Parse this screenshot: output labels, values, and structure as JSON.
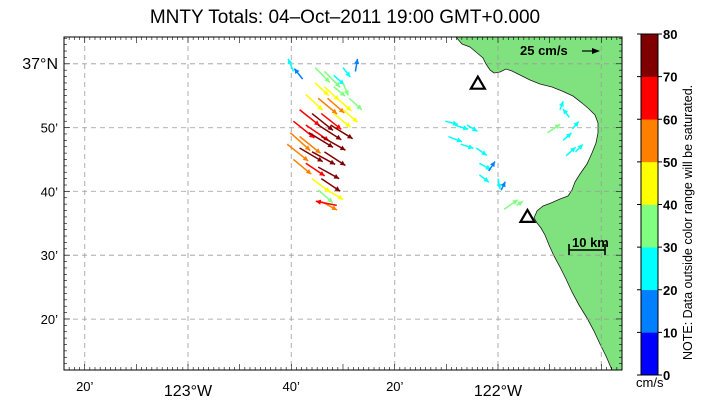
{
  "map": {
    "title": "MNTY Totals: 04–Oct–2011 19:00 GMT+0.000",
    "lon_range": [
      -123.4,
      -121.6
    ],
    "lat_range": [
      36.2,
      37.07
    ],
    "x_ticks": [
      {
        "lon": -123.333,
        "label": "20’"
      },
      {
        "lon": -123.0,
        "label": "123°W"
      },
      {
        "lon": -122.667,
        "label": "40’"
      },
      {
        "lon": -122.333,
        "label": "20’"
      },
      {
        "lon": -122.0,
        "label": "122°W"
      },
      {
        "lon": -121.667,
        "label": ""
      }
    ],
    "y_ticks": [
      {
        "lat": 37.0,
        "label": "37°N"
      },
      {
        "lat": 36.833,
        "label": "50’"
      },
      {
        "lat": 36.667,
        "label": "40’"
      },
      {
        "lat": 36.5,
        "label": "30’"
      },
      {
        "lat": 36.333,
        "label": "20’"
      }
    ],
    "scale_arrow_label": "25 cm/s",
    "scale_bar_label": "10 km",
    "land_color": "#7fe27f",
    "sites": [
      {
        "lon": -122.065,
        "lat": 36.948
      },
      {
        "lon": -121.905,
        "lat": 36.6
      }
    ]
  },
  "colorbar": {
    "ticks": [
      "0",
      "10",
      "20",
      "30",
      "40",
      "50",
      "60",
      "70",
      "80"
    ],
    "unit": "cm/s",
    "note": "NOTE: Data outside color range will be saturated.",
    "colors": [
      "#0000ff",
      "#0080ff",
      "#00ffff",
      "#80ff80",
      "#ffff00",
      "#ff8000",
      "#ff0000",
      "#800000"
    ]
  },
  "chart_data": {
    "type": "vector-field",
    "title": "MNTY Totals: 04–Oct–2011 19:00 GMT+0.000",
    "units": "cm/s",
    "color_range": [
      0,
      80
    ],
    "vectors": [
      {
        "lon": -122.66,
        "lat": 36.98,
        "u": -5,
        "v": 12,
        "speed": 20
      },
      {
        "lon": -122.63,
        "lat": 36.96,
        "u": -8,
        "v": 10,
        "speed": 18
      },
      {
        "lon": -122.59,
        "lat": 36.99,
        "u": 14,
        "v": -14,
        "speed": 34
      },
      {
        "lon": -122.56,
        "lat": 36.98,
        "u": 15,
        "v": -15,
        "speed": 35
      },
      {
        "lon": -122.53,
        "lat": 36.97,
        "u": 10,
        "v": -9,
        "speed": 25
      },
      {
        "lon": -122.5,
        "lat": 36.99,
        "u": 7,
        "v": -9,
        "speed": 22
      },
      {
        "lon": -122.46,
        "lat": 36.98,
        "u": 2,
        "v": 12,
        "speed": 14
      },
      {
        "lon": -122.59,
        "lat": 36.95,
        "u": 13,
        "v": -12,
        "speed": 45
      },
      {
        "lon": -122.56,
        "lat": 36.94,
        "u": 14,
        "v": -13,
        "speed": 40
      },
      {
        "lon": -122.53,
        "lat": 36.94,
        "u": 11,
        "v": -9,
        "speed": 37
      },
      {
        "lon": -122.5,
        "lat": 36.95,
        "u": 5,
        "v": -12,
        "speed": 32
      },
      {
        "lon": -122.62,
        "lat": 36.92,
        "u": 16,
        "v": -15,
        "speed": 45
      },
      {
        "lon": -122.58,
        "lat": 36.91,
        "u": 18,
        "v": -15,
        "speed": 55
      },
      {
        "lon": -122.55,
        "lat": 36.91,
        "u": 16,
        "v": -14,
        "speed": 50
      },
      {
        "lon": -122.52,
        "lat": 36.91,
        "u": 14,
        "v": -12,
        "speed": 43
      },
      {
        "lon": -122.48,
        "lat": 36.91,
        "u": 12,
        "v": -11,
        "speed": 36
      },
      {
        "lon": -122.64,
        "lat": 36.88,
        "u": 19,
        "v": -15,
        "speed": 68
      },
      {
        "lon": -122.6,
        "lat": 36.87,
        "u": 20,
        "v": -16,
        "speed": 72
      },
      {
        "lon": -122.57,
        "lat": 36.87,
        "u": 19,
        "v": -15,
        "speed": 62
      },
      {
        "lon": -122.53,
        "lat": 36.87,
        "u": 16,
        "v": -13,
        "speed": 48
      },
      {
        "lon": -122.5,
        "lat": 36.88,
        "u": 14,
        "v": -12,
        "speed": 42
      },
      {
        "lon": -122.66,
        "lat": 36.85,
        "u": 20,
        "v": -16,
        "speed": 62
      },
      {
        "lon": -122.62,
        "lat": 36.84,
        "u": 22,
        "v": -15,
        "speed": 66
      },
      {
        "lon": -122.58,
        "lat": 36.84,
        "u": 22,
        "v": -14,
        "speed": 76
      },
      {
        "lon": -122.54,
        "lat": 36.84,
        "u": 21,
        "v": -13,
        "speed": 78
      },
      {
        "lon": -122.67,
        "lat": 36.82,
        "u": 19,
        "v": -17,
        "speed": 55
      },
      {
        "lon": -122.64,
        "lat": 36.81,
        "u": 20,
        "v": -16,
        "speed": 58
      },
      {
        "lon": -122.61,
        "lat": 36.82,
        "u": 23,
        "v": -14,
        "speed": 78
      },
      {
        "lon": -122.57,
        "lat": 36.81,
        "u": 23,
        "v": -13,
        "speed": 80
      },
      {
        "lon": -122.68,
        "lat": 36.79,
        "u": 20,
        "v": -16,
        "speed": 56
      },
      {
        "lon": -122.64,
        "lat": 36.78,
        "u": 22,
        "v": -13,
        "speed": 78
      },
      {
        "lon": -122.6,
        "lat": 36.77,
        "u": 22,
        "v": -12,
        "speed": 80
      },
      {
        "lon": -122.56,
        "lat": 36.77,
        "u": 20,
        "v": -13,
        "speed": 70
      },
      {
        "lon": -122.66,
        "lat": 36.75,
        "u": 17,
        "v": -14,
        "speed": 55
      },
      {
        "lon": -122.62,
        "lat": 36.74,
        "u": 18,
        "v": -12,
        "speed": 62
      },
      {
        "lon": -122.58,
        "lat": 36.73,
        "u": 20,
        "v": -11,
        "speed": 75
      },
      {
        "lon": -122.6,
        "lat": 36.7,
        "u": 17,
        "v": -13,
        "speed": 48
      },
      {
        "lon": -122.57,
        "lat": 36.7,
        "u": 18,
        "v": -12,
        "speed": 70
      },
      {
        "lon": -122.58,
        "lat": 36.67,
        "u": 14,
        "v": -12,
        "speed": 38
      },
      {
        "lon": -122.55,
        "lat": 36.67,
        "u": 15,
        "v": -9,
        "speed": 45
      },
      {
        "lon": -122.57,
        "lat": 36.64,
        "u": 15,
        "v": -8,
        "speed": 50
      },
      {
        "lon": -122.52,
        "lat": 36.63,
        "u": -20,
        "v": 4,
        "speed": 68
      },
      {
        "lon": -122.17,
        "lat": 36.85,
        "u": 12,
        "v": -3,
        "speed": 25
      },
      {
        "lon": -122.14,
        "lat": 36.84,
        "u": 13,
        "v": -4,
        "speed": 26
      },
      {
        "lon": -122.1,
        "lat": 36.84,
        "u": 10,
        "v": -6,
        "speed": 27
      },
      {
        "lon": -122.16,
        "lat": 36.81,
        "u": 13,
        "v": -5,
        "speed": 25
      },
      {
        "lon": -122.12,
        "lat": 36.79,
        "u": 12,
        "v": -4,
        "speed": 27
      },
      {
        "lon": -122.07,
        "lat": 36.78,
        "u": 10,
        "v": -7,
        "speed": 26
      },
      {
        "lon": -122.06,
        "lat": 36.74,
        "u": 11,
        "v": -6,
        "speed": 25
      },
      {
        "lon": -122.06,
        "lat": 36.71,
        "u": 9,
        "v": -7,
        "speed": 26
      },
      {
        "lon": -122.03,
        "lat": 36.72,
        "u": 6,
        "v": 9,
        "speed": 14
      },
      {
        "lon": -122.0,
        "lat": 36.7,
        "u": 2,
        "v": -10,
        "speed": 25
      },
      {
        "lon": -121.99,
        "lat": 36.67,
        "u": 4,
        "v": 8,
        "speed": 14
      },
      {
        "lon": -121.98,
        "lat": 36.62,
        "u": 13,
        "v": 9,
        "speed": 32
      },
      {
        "lon": -121.94,
        "lat": 36.63,
        "u": 6,
        "v": 4,
        "speed": 35
      },
      {
        "lon": -121.8,
        "lat": 36.88,
        "u": 3,
        "v": 8,
        "speed": 24
      },
      {
        "lon": -121.77,
        "lat": 36.86,
        "u": -6,
        "v": 8,
        "speed": 22
      },
      {
        "lon": -121.84,
        "lat": 36.82,
        "u": 12,
        "v": 8,
        "speed": 33
      },
      {
        "lon": -121.79,
        "lat": 36.8,
        "u": 8,
        "v": 7,
        "speed": 27
      },
      {
        "lon": -121.76,
        "lat": 36.83,
        "u": 6,
        "v": 7,
        "speed": 28
      },
      {
        "lon": -121.78,
        "lat": 36.76,
        "u": 9,
        "v": 8,
        "speed": 25
      },
      {
        "lon": -121.75,
        "lat": 36.77,
        "u": 7,
        "v": 7,
        "speed": 27
      }
    ]
  }
}
